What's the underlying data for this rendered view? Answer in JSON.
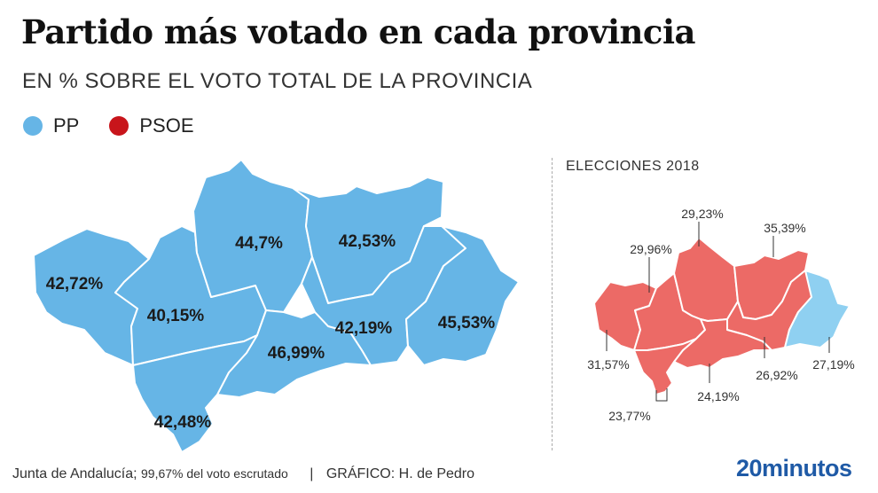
{
  "title": "Partido más votado en cada provincia",
  "subtitle": "EN % SOBRE EL VOTO TOTAL DE LA PROVINCIA",
  "legend": [
    {
      "label": "PP",
      "color": "#66b5e6"
    },
    {
      "label": "PSOE",
      "color": "#c8151b"
    }
  ],
  "colors": {
    "pp": "#66b5e6",
    "psoe_light": "#ec6a66",
    "pp_light": "#8fd0f1",
    "brand": "#1f5aa6"
  },
  "main_map": {
    "provinces": [
      {
        "name": "Huelva",
        "party": "PP",
        "value": "42,72%"
      },
      {
        "name": "Sevilla",
        "party": "PP",
        "value": "40,15%"
      },
      {
        "name": "Córdoba",
        "party": "PP",
        "value": "44,7%"
      },
      {
        "name": "Jaén",
        "party": "PP",
        "value": "42,53%"
      },
      {
        "name": "Granada",
        "party": "PP",
        "value": "42,19%"
      },
      {
        "name": "Almería",
        "party": "PP",
        "value": "45,53%"
      },
      {
        "name": "Málaga",
        "party": "PP",
        "value": "46,99%"
      },
      {
        "name": "Cádiz",
        "party": "PP",
        "value": "42,48%"
      }
    ]
  },
  "inset": {
    "title": "ELECCIONES 2018",
    "provinces": [
      {
        "name": "Huelva",
        "party": "PSOE",
        "value": "31,57%"
      },
      {
        "name": "Sevilla",
        "party": "PSOE",
        "value": "29,96%"
      },
      {
        "name": "Córdoba",
        "party": "PSOE",
        "value": "29,23%"
      },
      {
        "name": "Jaén",
        "party": "PSOE",
        "value": "35,39%"
      },
      {
        "name": "Granada",
        "party": "PSOE",
        "value": "26,92%"
      },
      {
        "name": "Almería",
        "party": "PP",
        "value": "27,19%"
      },
      {
        "name": "Málaga",
        "party": "PSOE",
        "value": "24,19%"
      },
      {
        "name": "Cádiz",
        "party": "PSOE",
        "value": "23,77%"
      }
    ]
  },
  "footer": {
    "source": "Junta de Andalucía;",
    "note": "99,67% del voto escrutado",
    "separator": "|",
    "credit": "GRÁFICO: H. de Pedro"
  },
  "brand": "20minutos"
}
